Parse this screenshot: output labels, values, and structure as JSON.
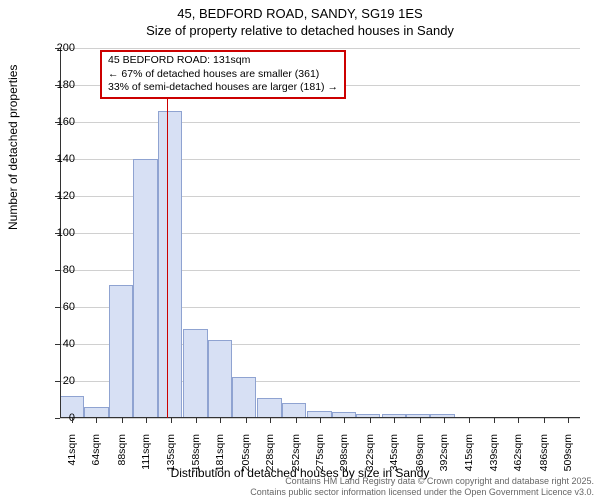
{
  "title": "45, BEDFORD ROAD, SANDY, SG19 1ES",
  "subtitle": "Size of property relative to detached houses in Sandy",
  "chart": {
    "type": "histogram",
    "background_color": "#ffffff",
    "grid_color": "#d0d0d0",
    "axis_color": "#333333",
    "bar_fill": "#d7e0f4",
    "bar_stroke": "#8fa3d1",
    "xlim": [
      30,
      520
    ],
    "ylim": [
      0,
      200
    ],
    "ytick_step": 20,
    "y_ticks": [
      0,
      20,
      40,
      60,
      80,
      100,
      120,
      140,
      160,
      180,
      200
    ],
    "x_ticks": [
      "41sqm",
      "64sqm",
      "88sqm",
      "111sqm",
      "135sqm",
      "158sqm",
      "181sqm",
      "205sqm",
      "228sqm",
      "252sqm",
      "275sqm",
      "298sqm",
      "322sqm",
      "345sqm",
      "369sqm",
      "392sqm",
      "415sqm",
      "439sqm",
      "462sqm",
      "486sqm",
      "509sqm"
    ],
    "x_tick_positions": [
      41,
      64,
      88,
      111,
      135,
      158,
      181,
      205,
      228,
      252,
      275,
      298,
      322,
      345,
      369,
      392,
      415,
      439,
      462,
      486,
      509
    ],
    "bins": [
      {
        "x": 30,
        "count": 12
      },
      {
        "x": 53,
        "count": 6
      },
      {
        "x": 76,
        "count": 72
      },
      {
        "x": 99,
        "count": 140
      },
      {
        "x": 122,
        "count": 166
      },
      {
        "x": 146,
        "count": 48
      },
      {
        "x": 169,
        "count": 42
      },
      {
        "x": 192,
        "count": 22
      },
      {
        "x": 216,
        "count": 11
      },
      {
        "x": 239,
        "count": 8
      },
      {
        "x": 263,
        "count": 4
      },
      {
        "x": 286,
        "count": 3
      },
      {
        "x": 309,
        "count": 2
      },
      {
        "x": 333,
        "count": 2
      },
      {
        "x": 356,
        "count": 2
      },
      {
        "x": 379,
        "count": 2
      },
      {
        "x": 403,
        "count": 0
      },
      {
        "x": 426,
        "count": 0
      },
      {
        "x": 449,
        "count": 0
      },
      {
        "x": 473,
        "count": 0
      },
      {
        "x": 496,
        "count": 0
      }
    ],
    "bin_width": 23,
    "ylabel": "Number of detached properties",
    "xlabel": "Distribution of detached houses by size in Sandy",
    "label_fontsize": 12,
    "tick_fontsize": 11
  },
  "marker": {
    "value": 131,
    "color": "#cc0000",
    "width": 1
  },
  "annotation": {
    "line1": "45 BEDFORD ROAD: 131sqm",
    "line2": "← 67% of detached houses are smaller (361)",
    "line3": "33% of semi-detached houses are larger (181) →",
    "border_color": "#cc0000",
    "background": "#ffffff",
    "fontsize": 10.5
  },
  "credits": {
    "line1": "Contains HM Land Registry data © Crown copyright and database right 2025.",
    "line2": "Contains public sector information licensed under the Open Government Licence v3.0."
  }
}
